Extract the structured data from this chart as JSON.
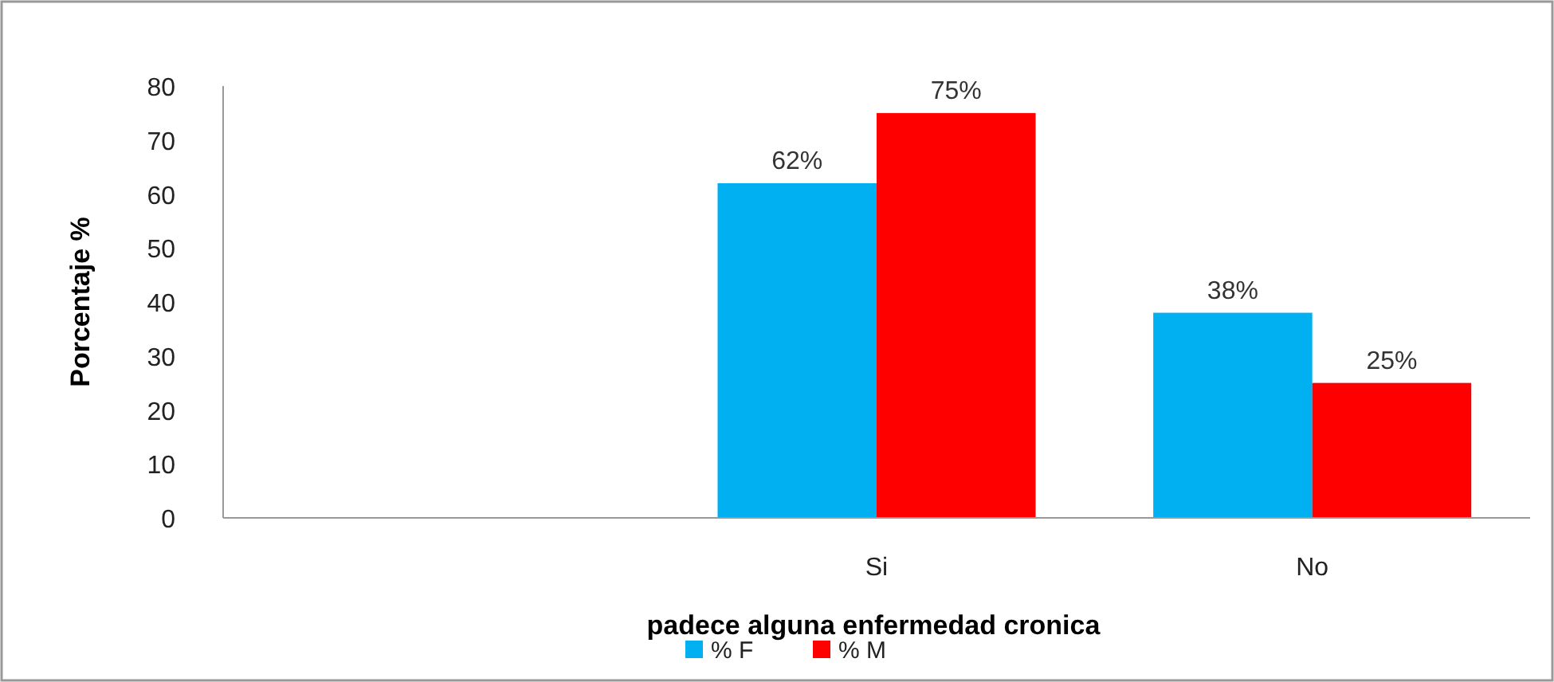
{
  "chart_data": {
    "type": "bar",
    "xlabel": "padece alguna  enfermedad cronica",
    "ylabel": "Porcentaje %",
    "categories": [
      null,
      "Si",
      "No"
    ],
    "series": [
      {
        "name": "% F",
        "color": "#00b0f0",
        "values": [
          null,
          62,
          38
        ],
        "value_labels": [
          null,
          "62%",
          "38%"
        ]
      },
      {
        "name": "% M",
        "color": "#ff0000",
        "values": [
          null,
          75,
          25
        ],
        "value_labels": [
          null,
          "75%",
          "25%"
        ]
      }
    ],
    "ylim": [
      0,
      80
    ],
    "yticks": [
      0,
      10,
      20,
      30,
      40,
      50,
      60,
      70,
      80
    ],
    "grid": false,
    "legend": "bottom"
  }
}
